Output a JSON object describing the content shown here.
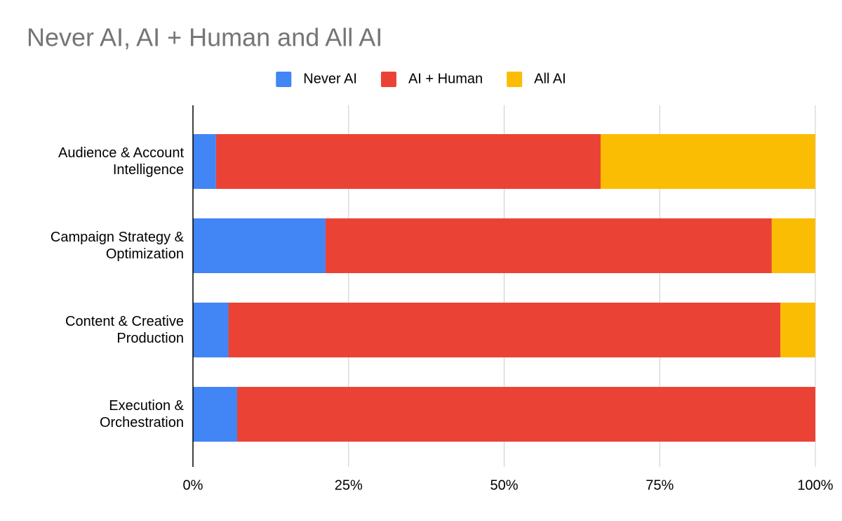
{
  "chart_data": {
    "type": "stacked-bar-horizontal",
    "title": "Never AI, AI + Human and All AI",
    "categories": [
      "Audience & Account Intelligence",
      "Campaign Strategy & Optimization",
      "Content & Creative Production",
      "Execution & Orchestration"
    ],
    "series": [
      {
        "name": "Never AI",
        "color": "#4285f4",
        "values": [
          3.7,
          21.3,
          5.7,
          7.1
        ]
      },
      {
        "name": "AI + Human",
        "color": "#ea4335",
        "values": [
          61.8,
          71.7,
          88.7,
          92.9
        ]
      },
      {
        "name": "All AI",
        "color": "#fbbc04",
        "values": [
          34.5,
          7.0,
          5.6,
          0
        ]
      }
    ],
    "xlim": [
      0,
      100
    ],
    "xticks": [
      {
        "value": 0,
        "label": "0%"
      },
      {
        "value": 25,
        "label": "25%"
      },
      {
        "value": 50,
        "label": "50%"
      },
      {
        "value": 75,
        "label": "75%"
      },
      {
        "value": 100,
        "label": "100%"
      }
    ],
    "grid": true,
    "legend": "top"
  }
}
